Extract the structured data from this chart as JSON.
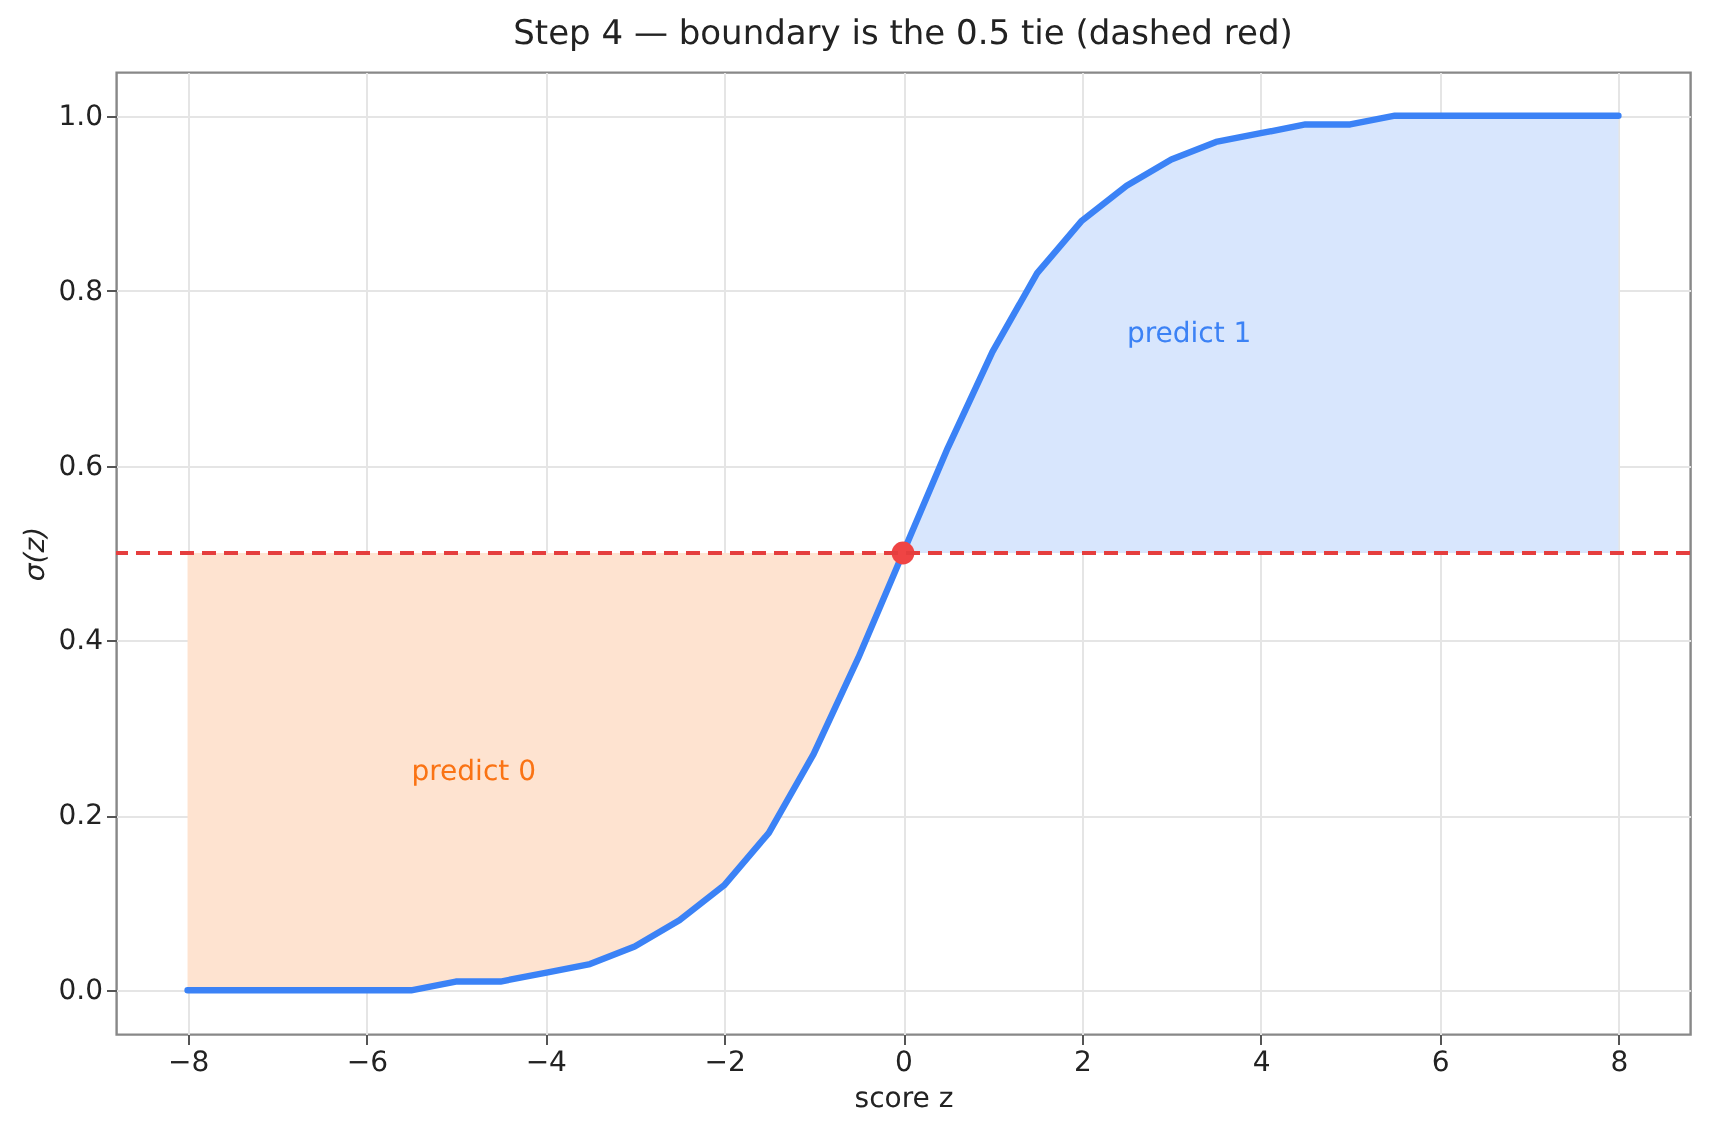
{
  "chart_data": {
    "type": "line",
    "title": "Step 4 — boundary is the 0.5 tie (dashed red)",
    "xlabel": "score  z",
    "ylabel": "σ(z)",
    "xlim": [
      -8.8,
      8.8
    ],
    "xticks": [
      -8,
      -6,
      -4,
      -2,
      0,
      2,
      4,
      6,
      8
    ],
    "ylim": [
      -0.05,
      1.05
    ],
    "yticks": [
      {
        "value": 0,
        "label": "0.0"
      },
      0.2,
      0.4,
      0.6,
      0.8,
      {
        "value": 1,
        "label": "1.0"
      }
    ],
    "grid": true,
    "series": [
      {
        "type": "area",
        "color": "#fee3d0",
        "x": [
          -8,
          -7.5,
          -7,
          -6.5,
          -6,
          -5.5,
          -5,
          -4.5,
          -4,
          -3.5,
          -3,
          -2.5,
          -2,
          -1.5,
          -1,
          -0.5,
          0
        ],
        "values": [
          0.5,
          0.5,
          0.5,
          0.5,
          0.5,
          0.5,
          0.5,
          0.5,
          0.5,
          0.5,
          0.5,
          0.5,
          0.5,
          0.5,
          0.5,
          0.5,
          0.5
        ]
      },
      {
        "type": "area",
        "color": "#d8e6fd",
        "x": [
          0,
          0.5,
          1,
          1.5,
          2,
          2.5,
          3,
          3.5,
          4,
          4.5,
          5,
          5.5,
          6,
          6.5,
          7,
          7.5,
          8
        ],
        "values": [
          0.5,
          0.62,
          0.73,
          0.82,
          0.88,
          0.92,
          0.95,
          0.97,
          0.98,
          0.99,
          0.99,
          1.0,
          1.0,
          1.0,
          1.0,
          1.0,
          1.0
        ]
      },
      {
        "color": "#3b82f6",
        "line_style": "solid",
        "marker": "none",
        "x": [
          -8,
          -7.5,
          -7,
          -6.5,
          -6,
          -5.5,
          -5,
          -4.5,
          -4,
          -3.5,
          -3,
          -2.5,
          -2,
          -1.5,
          -1,
          -0.5,
          0,
          0.5,
          1,
          1.5,
          2,
          2.5,
          3,
          3.5,
          4,
          4.5,
          5,
          5.5,
          6,
          6.5,
          7,
          7.5,
          8
        ],
        "values": [
          0.0,
          0.0,
          0.0,
          0.0,
          0.0,
          0.0,
          0.01,
          0.01,
          0.02,
          0.03,
          0.05,
          0.08,
          0.12,
          0.18,
          0.27,
          0.38,
          0.5,
          0.62,
          0.73,
          0.82,
          0.88,
          0.92,
          0.95,
          0.97,
          0.98,
          0.99,
          0.99,
          1.0,
          1.0,
          1.0,
          1.0,
          1.0,
          1.0
        ]
      },
      {
        "type": "scatter",
        "color": "#ef4444",
        "marker": "circle",
        "x": [
          0
        ],
        "values": [
          0.5
        ]
      }
    ],
    "ref_lines": [
      {
        "axis": "y",
        "value": 0.5,
        "color": "#e53e3e",
        "line_style": "dashed"
      }
    ],
    "annotations": [
      "predict 0",
      "predict 1"
    ]
  }
}
